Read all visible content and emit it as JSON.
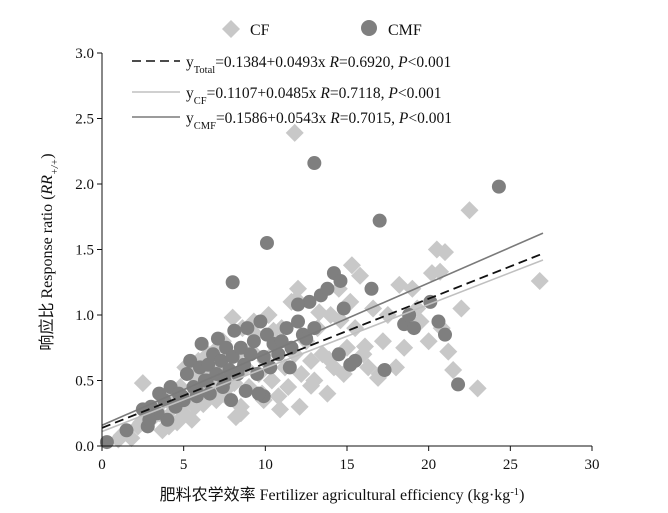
{
  "chart_data": {
    "type": "scatter",
    "xlabel": "肥料农学效率 Fertilizer agricultural efficiency (kg·kg",
    "xlabel_sup": "-1",
    "xlabel_end": ")",
    "ylabel": "响应比 Response ratio (",
    "ylabel_italic": "RR",
    "ylabel_sub": "+/+",
    "ylabel_end": ")",
    "xlim": [
      0,
      30
    ],
    "ylim": [
      0,
      3.0
    ],
    "xticks": [
      "0",
      "5",
      "10",
      "15",
      "20",
      "25",
      "30"
    ],
    "yticks": [
      "0.0",
      "0.5",
      "1.0",
      "1.5",
      "2.0",
      "2.5",
      "3.0"
    ],
    "colors": {
      "CF": "#c8c8c8",
      "CMF": "#7f7f7f",
      "total_line": "#111111",
      "cf_line": "#c0c0c0",
      "cmf_line": "#7a7a7a"
    },
    "series": [
      {
        "name": "CF",
        "marker": "diamond",
        "x": [
          1.2,
          1.8,
          2.2,
          2.5,
          3.0,
          3.2,
          3.5,
          3.8,
          4.0,
          4.2,
          4.4,
          4.6,
          4.8,
          5.0,
          5.1,
          5.3,
          5.5,
          5.7,
          5.9,
          6.0,
          6.1,
          6.3,
          6.5,
          6.7,
          6.8,
          7.0,
          7.1,
          7.2,
          7.4,
          7.5,
          7.6,
          7.8,
          8.0,
          8.1,
          8.3,
          8.5,
          8.6,
          8.8,
          9.0,
          9.2,
          9.4,
          9.6,
          9.8,
          10.0,
          10.2,
          10.4,
          10.6,
          10.8,
          11.0,
          11.2,
          11.4,
          11.6,
          11.8,
          12.0,
          12.2,
          12.5,
          12.8,
          13.0,
          13.2,
          13.5,
          13.8,
          14.0,
          14.2,
          14.5,
          14.8,
          15.0,
          15.2,
          15.5,
          15.8,
          16.0,
          16.3,
          16.6,
          17.0,
          17.2,
          17.5,
          18.0,
          18.5,
          19.0,
          19.5,
          20.0,
          20.5,
          20.8,
          21.0,
          21.5,
          22.0,
          22.5,
          23.0,
          26.8,
          11.8,
          11.9,
          7.6,
          8.5,
          9.3,
          10.5,
          5.5,
          6.2,
          7.3,
          12.8,
          13.3,
          13.9,
          14.6,
          15.3,
          16.1,
          16.9,
          18.2,
          19.3,
          20.2,
          20.7,
          21.2,
          4.1,
          3.7,
          6.9,
          9.9,
          10.9,
          8.2,
          12.1,
          2.4,
          1.0
        ],
        "y": [
          0.08,
          0.06,
          0.15,
          0.48,
          0.2,
          0.28,
          0.25,
          0.35,
          0.22,
          0.4,
          0.3,
          0.18,
          0.45,
          0.25,
          0.6,
          0.35,
          0.55,
          0.3,
          0.65,
          0.5,
          0.4,
          0.55,
          0.7,
          0.45,
          0.62,
          0.35,
          0.75,
          0.5,
          0.8,
          0.42,
          0.6,
          0.55,
          0.98,
          0.48,
          0.7,
          0.25,
          0.9,
          0.6,
          0.45,
          0.72,
          0.85,
          0.55,
          0.4,
          0.65,
          1.0,
          0.5,
          0.72,
          0.38,
          0.9,
          0.6,
          0.45,
          1.1,
          0.7,
          1.2,
          0.55,
          0.8,
          0.65,
          0.5,
          0.9,
          0.7,
          0.4,
          1.0,
          0.6,
          1.2,
          0.55,
          0.75,
          1.1,
          0.9,
          1.3,
          0.7,
          0.6,
          1.05,
          0.55,
          0.8,
          1.0,
          0.6,
          0.75,
          1.2,
          0.95,
          0.8,
          1.5,
          0.9,
          1.48,
          0.58,
          1.05,
          1.8,
          0.44,
          1.26,
          2.39,
          1.12,
          0.38,
          0.3,
          0.95,
          0.88,
          0.2,
          0.32,
          0.52,
          0.46,
          1.02,
          0.66,
          0.96,
          1.38,
          0.76,
          0.52,
          1.23,
          1.05,
          1.32,
          1.33,
          0.72,
          0.15,
          0.12,
          0.48,
          0.35,
          0.28,
          0.22,
          0.3,
          0.18,
          0.05
        ]
      },
      {
        "name": "CMF",
        "marker": "circle",
        "x": [
          0.3,
          1.5,
          2.5,
          2.8,
          3.0,
          3.5,
          3.8,
          4.0,
          4.2,
          4.5,
          4.7,
          5.0,
          5.2,
          5.4,
          5.6,
          5.8,
          6.0,
          6.1,
          6.3,
          6.5,
          6.6,
          6.8,
          7.0,
          7.1,
          7.3,
          7.5,
          7.6,
          7.8,
          8.0,
          8.1,
          8.3,
          8.5,
          8.7,
          8.9,
          9.1,
          9.3,
          9.5,
          9.7,
          9.9,
          10.1,
          10.3,
          10.5,
          10.8,
          11.0,
          11.3,
          11.6,
          12.0,
          12.3,
          12.7,
          13.0,
          13.4,
          13.8,
          14.2,
          14.5,
          14.8,
          15.2,
          16.5,
          17.0,
          17.3,
          18.5,
          18.8,
          19.1,
          20.1,
          20.6,
          21.0,
          21.8,
          24.3,
          13.0,
          12.0,
          10.1,
          9.9,
          8.0,
          15.5,
          11.5,
          7.4,
          6.4,
          5.8,
          4.9,
          3.4,
          2.9,
          7.9,
          8.8,
          9.6,
          14.6,
          12.5
        ],
        "y": [
          0.03,
          0.12,
          0.28,
          0.15,
          0.3,
          0.4,
          0.35,
          0.2,
          0.45,
          0.3,
          0.4,
          0.35,
          0.55,
          0.65,
          0.45,
          0.38,
          0.6,
          0.78,
          0.5,
          0.62,
          0.4,
          0.7,
          0.55,
          0.82,
          0.65,
          0.5,
          0.75,
          0.58,
          0.68,
          0.88,
          0.55,
          0.75,
          0.62,
          0.9,
          0.7,
          0.8,
          0.55,
          0.95,
          0.68,
          0.85,
          0.6,
          0.78,
          0.7,
          0.8,
          0.9,
          0.75,
          0.95,
          0.85,
          1.1,
          0.9,
          1.15,
          1.2,
          1.32,
          0.7,
          1.05,
          0.62,
          1.2,
          1.72,
          0.58,
          0.93,
          1.0,
          0.9,
          1.1,
          0.95,
          0.85,
          0.47,
          1.98,
          2.16,
          1.08,
          1.55,
          0.38,
          1.25,
          0.65,
          0.6,
          0.45,
          0.5,
          0.42,
          0.38,
          0.25,
          0.2,
          0.35,
          0.42,
          0.4,
          1.26,
          0.82
        ]
      }
    ],
    "fits": [
      {
        "name": "Total",
        "intercept": 0.1384,
        "slope": 0.0493,
        "x_range": [
          0,
          27
        ],
        "style": "dashed",
        "label": {
          "y": "y",
          "sub": "Total",
          "eq": "=0.1384+0.0493x ",
          "r_sym": "R",
          "r_val": "=0.6920, ",
          "p_sym": "P",
          "p_val": "<0.001"
        }
      },
      {
        "name": "CF",
        "intercept": 0.1107,
        "slope": 0.0485,
        "x_range": [
          0,
          27
        ],
        "style": "solid-light",
        "label": {
          "y": "y",
          "sub": "CF",
          "eq": "=0.1107+0.0485x ",
          "r_sym": "R",
          "r_val": "=0.7118, ",
          "p_sym": "P",
          "p_val": "<0.001"
        }
      },
      {
        "name": "CMF",
        "intercept": 0.1586,
        "slope": 0.0543,
        "x_range": [
          0,
          27
        ],
        "style": "solid-dark",
        "label": {
          "y": "y",
          "sub": "CMF",
          "eq": "=0.1586+0.0543x ",
          "r_sym": "R",
          "r_val": "=0.7015, ",
          "p_sym": "P",
          "p_val": "<0.001"
        }
      }
    ],
    "legend": {
      "placement": "top",
      "items": [
        {
          "label": "CF",
          "marker": "diamond"
        },
        {
          "label": "CMF",
          "marker": "circle"
        }
      ]
    }
  }
}
